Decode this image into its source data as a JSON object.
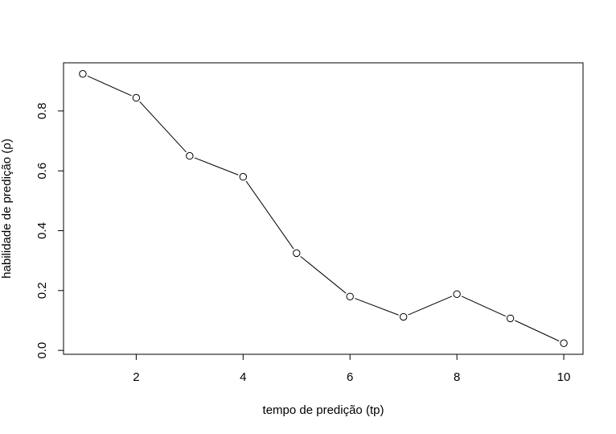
{
  "chart_data": {
    "type": "line",
    "title": "",
    "xlabel": "tempo de predição (tp)",
    "ylabel": "habilidade de predição (ρ)",
    "x": [
      1,
      2,
      3,
      4,
      5,
      6,
      7,
      8,
      9,
      10
    ],
    "series": [
      {
        "values": [
          0.924,
          0.844,
          0.65,
          0.58,
          0.325,
          0.18,
          0.112,
          0.188,
          0.107,
          0.024
        ]
      }
    ],
    "xlim": [
      0.64,
      10.36
    ],
    "ylim": [
      -0.013,
      0.961
    ],
    "xticks": [
      2,
      4,
      6,
      8,
      10
    ],
    "xtick_labels": [
      "2",
      "4",
      "6",
      "8",
      "10"
    ],
    "yticks": [
      0.0,
      0.2,
      0.4,
      0.6,
      0.8
    ],
    "ytick_labels": [
      "0.0",
      "0.2",
      "0.4",
      "0.6",
      "0.8"
    ],
    "grid": false,
    "legend": "none",
    "marker": "open-circle",
    "line_color": "#000000"
  }
}
